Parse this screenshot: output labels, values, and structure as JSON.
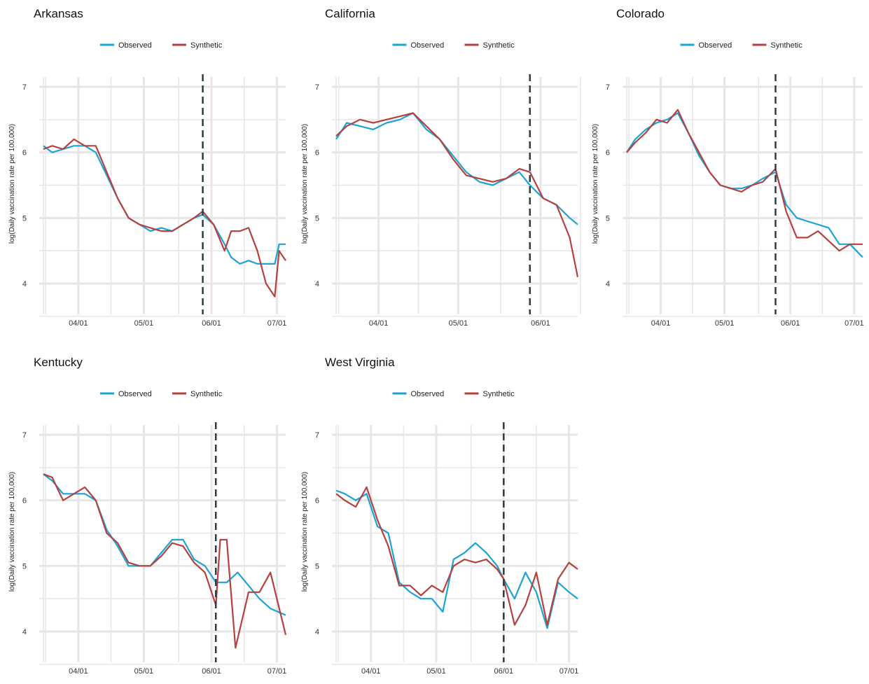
{
  "legend_labels": {
    "observed": "Observed",
    "synthetic": "Synthetic"
  },
  "ylabel": "log(Daily vaccination rate per 100,000)",
  "colors": {
    "observed": "#1aa3d4",
    "synthetic": "#b5413f",
    "grid": "#e6e6e6",
    "vline": "#2f3e46"
  },
  "chart_data": [
    {
      "type": "line",
      "title": "Arkansas",
      "x_ticks": [
        "04/01",
        "05/01",
        "06/01",
        "07/01"
      ],
      "x_range": [
        "03/16",
        "07/05"
      ],
      "ylim": [
        3.5,
        7.1
      ],
      "y_ticks": [
        4,
        5,
        6,
        7
      ],
      "treatment_date": "05/28",
      "grid": true,
      "legend": "top",
      "series": [
        {
          "name": "Observed",
          "x": [
            "03/16",
            "03/20",
            "03/25",
            "03/30",
            "04/04",
            "04/09",
            "04/14",
            "04/19",
            "04/24",
            "04/29",
            "05/04",
            "05/09",
            "05/14",
            "05/19",
            "05/24",
            "05/28",
            "06/02",
            "06/07",
            "06/10",
            "06/14",
            "06/18",
            "06/22",
            "06/26",
            "06/30",
            "07/02",
            "07/05"
          ],
          "y": [
            6.1,
            6.0,
            6.05,
            6.1,
            6.1,
            6.0,
            5.65,
            5.3,
            5.0,
            4.9,
            4.8,
            4.85,
            4.8,
            4.9,
            5.0,
            5.05,
            4.9,
            4.6,
            4.4,
            4.3,
            4.35,
            4.3,
            4.3,
            4.3,
            4.6,
            4.6
          ]
        },
        {
          "name": "Synthetic",
          "x": [
            "03/16",
            "03/20",
            "03/25",
            "03/30",
            "04/04",
            "04/09",
            "04/14",
            "04/19",
            "04/24",
            "04/29",
            "05/04",
            "05/09",
            "05/14",
            "05/19",
            "05/24",
            "05/28",
            "06/02",
            "06/07",
            "06/10",
            "06/14",
            "06/18",
            "06/22",
            "06/26",
            "06/30",
            "07/02",
            "07/05"
          ],
          "y": [
            6.05,
            6.1,
            6.05,
            6.2,
            6.1,
            6.1,
            5.7,
            5.3,
            5.0,
            4.9,
            4.85,
            4.8,
            4.8,
            4.9,
            5.0,
            5.1,
            4.9,
            4.5,
            4.8,
            4.8,
            4.85,
            4.5,
            4.0,
            3.8,
            4.5,
            4.35
          ]
        }
      ]
    },
    {
      "type": "line",
      "title": "California",
      "x_ticks": [
        "04/01",
        "05/01",
        "06/01"
      ],
      "x_range": [
        "03/16",
        "06/15"
      ],
      "ylim": [
        3.5,
        7.1
      ],
      "y_ticks": [
        4,
        5,
        6,
        7
      ],
      "treatment_date": "05/28",
      "grid": true,
      "legend": "top",
      "series": [
        {
          "name": "Observed",
          "x": [
            "03/16",
            "03/20",
            "03/25",
            "03/30",
            "04/04",
            "04/09",
            "04/14",
            "04/19",
            "04/24",
            "04/29",
            "05/04",
            "05/09",
            "05/14",
            "05/19",
            "05/24",
            "05/28",
            "06/02",
            "06/07",
            "06/12",
            "06/15"
          ],
          "y": [
            6.2,
            6.45,
            6.4,
            6.35,
            6.45,
            6.5,
            6.6,
            6.35,
            6.2,
            5.95,
            5.7,
            5.55,
            5.5,
            5.6,
            5.7,
            5.5,
            5.3,
            5.2,
            5.0,
            4.9
          ]
        },
        {
          "name": "Synthetic",
          "x": [
            "03/16",
            "03/20",
            "03/25",
            "03/30",
            "04/04",
            "04/09",
            "04/14",
            "04/19",
            "04/24",
            "04/29",
            "05/04",
            "05/09",
            "05/14",
            "05/19",
            "05/24",
            "05/28",
            "06/02",
            "06/07",
            "06/12",
            "06/15"
          ],
          "y": [
            6.25,
            6.4,
            6.5,
            6.45,
            6.5,
            6.55,
            6.6,
            6.4,
            6.2,
            5.9,
            5.65,
            5.6,
            5.55,
            5.6,
            5.75,
            5.7,
            5.3,
            5.2,
            4.7,
            4.1
          ]
        }
      ]
    },
    {
      "type": "line",
      "title": "Colorado",
      "x_ticks": [
        "04/01",
        "05/01",
        "06/01",
        "07/01"
      ],
      "x_range": [
        "03/16",
        "07/05"
      ],
      "ylim": [
        3.5,
        7.1
      ],
      "y_ticks": [
        4,
        5,
        6,
        7
      ],
      "treatment_date": "05/25",
      "grid": true,
      "legend": "top",
      "series": [
        {
          "name": "Observed",
          "x": [
            "03/16",
            "03/20",
            "03/25",
            "03/30",
            "04/04",
            "04/09",
            "04/14",
            "04/19",
            "04/24",
            "04/29",
            "05/04",
            "05/09",
            "05/14",
            "05/19",
            "05/25",
            "05/30",
            "06/04",
            "06/09",
            "06/14",
            "06/19",
            "06/24",
            "06/29",
            "07/05"
          ],
          "y": [
            6.0,
            6.2,
            6.35,
            6.45,
            6.5,
            6.6,
            6.3,
            5.95,
            5.7,
            5.5,
            5.45,
            5.45,
            5.5,
            5.6,
            5.7,
            5.2,
            5.0,
            4.95,
            4.9,
            4.85,
            4.6,
            4.6,
            4.4
          ]
        },
        {
          "name": "Synthetic",
          "x": [
            "03/16",
            "03/20",
            "03/25",
            "03/30",
            "04/04",
            "04/09",
            "04/14",
            "04/19",
            "04/24",
            "04/29",
            "05/04",
            "05/09",
            "05/14",
            "05/19",
            "05/25",
            "05/30",
            "06/04",
            "06/09",
            "06/14",
            "06/19",
            "06/24",
            "06/29",
            "07/05"
          ],
          "y": [
            6.0,
            6.15,
            6.3,
            6.5,
            6.45,
            6.65,
            6.3,
            6.0,
            5.7,
            5.5,
            5.45,
            5.4,
            5.5,
            5.55,
            5.75,
            5.1,
            4.7,
            4.7,
            4.8,
            4.65,
            4.5,
            4.6,
            4.6
          ]
        }
      ]
    },
    {
      "type": "line",
      "title": "Kentucky",
      "x_ticks": [
        "04/01",
        "05/01",
        "06/01",
        "07/01"
      ],
      "x_range": [
        "03/16",
        "07/05"
      ],
      "ylim": [
        3.5,
        7.1
      ],
      "y_ticks": [
        4,
        5,
        6,
        7
      ],
      "treatment_date": "06/03",
      "grid": true,
      "legend": "top",
      "series": [
        {
          "name": "Observed",
          "x": [
            "03/16",
            "03/20",
            "03/25",
            "03/30",
            "04/04",
            "04/09",
            "04/14",
            "04/19",
            "04/24",
            "04/29",
            "05/04",
            "05/09",
            "05/14",
            "05/19",
            "05/24",
            "05/29",
            "06/03",
            "06/08",
            "06/13",
            "06/18",
            "06/23",
            "06/28",
            "07/05"
          ],
          "y": [
            6.4,
            6.3,
            6.1,
            6.1,
            6.1,
            6.0,
            5.55,
            5.3,
            5.0,
            5.0,
            5.0,
            5.2,
            5.4,
            5.4,
            5.1,
            5.0,
            4.75,
            4.75,
            4.9,
            4.7,
            4.5,
            4.35,
            4.25
          ]
        },
        {
          "name": "Synthetic",
          "x": [
            "03/16",
            "03/20",
            "03/25",
            "03/30",
            "04/04",
            "04/09",
            "04/14",
            "04/19",
            "04/24",
            "04/29",
            "05/04",
            "05/09",
            "05/14",
            "05/19",
            "05/24",
            "05/29",
            "06/03",
            "06/05",
            "06/08",
            "06/12",
            "06/18",
            "06/23",
            "06/28",
            "07/05"
          ],
          "y": [
            6.4,
            6.35,
            6.0,
            6.1,
            6.2,
            6.0,
            5.5,
            5.35,
            5.05,
            5.0,
            5.0,
            5.15,
            5.35,
            5.3,
            5.05,
            4.9,
            4.4,
            5.4,
            5.4,
            3.75,
            4.6,
            4.6,
            4.9,
            3.95
          ]
        }
      ]
    },
    {
      "type": "line",
      "title": "West Virginia",
      "x_ticks": [
        "04/01",
        "05/01",
        "06/01",
        "07/01"
      ],
      "x_range": [
        "03/16",
        "07/05"
      ],
      "ylim": [
        3.5,
        7.1
      ],
      "y_ticks": [
        4,
        5,
        6,
        7
      ],
      "treatment_date": "06/01",
      "grid": true,
      "legend": "top",
      "series": [
        {
          "name": "Observed",
          "x": [
            "03/16",
            "03/20",
            "03/25",
            "03/30",
            "04/04",
            "04/09",
            "04/14",
            "04/19",
            "04/24",
            "04/29",
            "05/04",
            "05/09",
            "05/14",
            "05/19",
            "05/24",
            "05/29",
            "06/01",
            "06/06",
            "06/11",
            "06/16",
            "06/21",
            "06/26",
            "07/01",
            "07/05"
          ],
          "y": [
            6.15,
            6.1,
            6.0,
            6.1,
            5.6,
            5.5,
            4.75,
            4.6,
            4.5,
            4.5,
            4.3,
            5.1,
            5.2,
            5.35,
            5.2,
            5.0,
            4.8,
            4.5,
            4.9,
            4.6,
            4.05,
            4.75,
            4.6,
            4.5
          ]
        },
        {
          "name": "Synthetic",
          "x": [
            "03/16",
            "03/20",
            "03/25",
            "03/30",
            "04/04",
            "04/09",
            "04/14",
            "04/19",
            "04/24",
            "04/29",
            "05/04",
            "05/09",
            "05/14",
            "05/19",
            "05/24",
            "05/29",
            "06/01",
            "06/06",
            "06/11",
            "06/16",
            "06/21",
            "06/26",
            "07/01",
            "07/05"
          ],
          "y": [
            6.1,
            6.0,
            5.9,
            6.2,
            5.7,
            5.3,
            4.7,
            4.7,
            4.55,
            4.7,
            4.6,
            5.0,
            5.1,
            5.05,
            5.1,
            4.95,
            4.8,
            4.1,
            4.4,
            4.9,
            4.1,
            4.8,
            5.05,
            4.95
          ]
        }
      ]
    }
  ]
}
